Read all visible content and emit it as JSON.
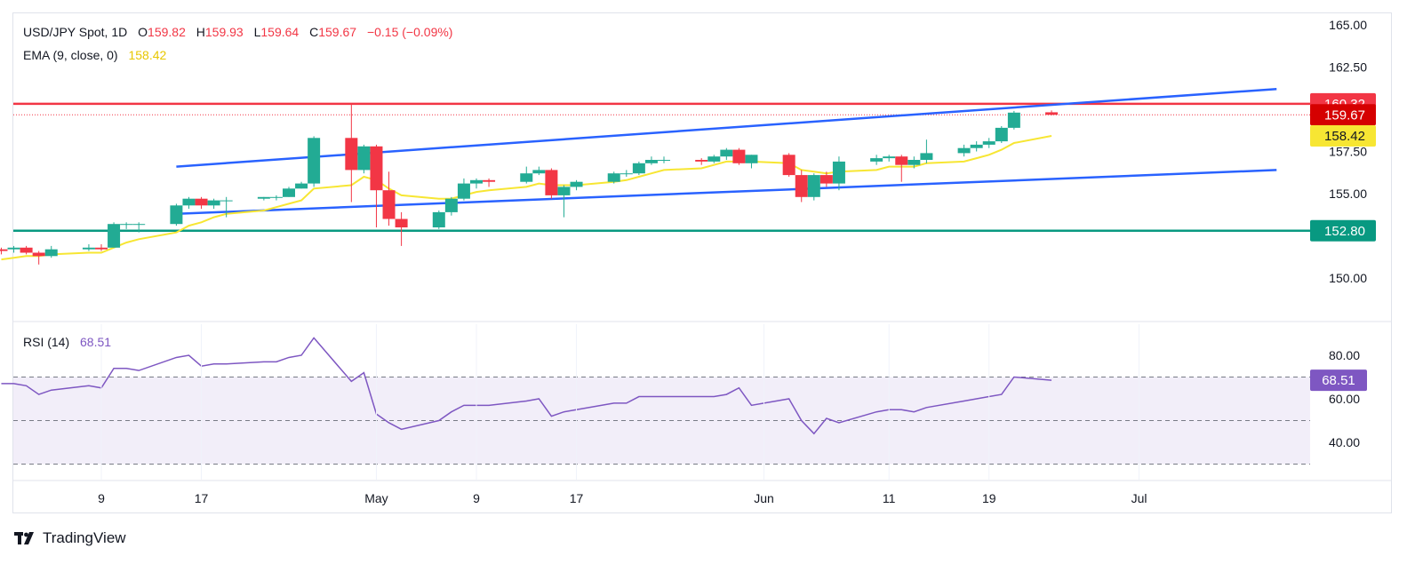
{
  "header": {
    "symbol": "USD/JPY Spot, 1D",
    "open_label": "O",
    "open": "159.82",
    "high_label": "H",
    "high": "159.93",
    "low_label": "L",
    "low": "159.64",
    "close_label": "C",
    "close": "159.67",
    "change": "−0.15 (−0.09%)"
  },
  "ema_legend": {
    "label": "EMA (9, close, 0)",
    "value": "158.42"
  },
  "rsi_legend": {
    "label": "RSI (14)",
    "value": "68.51"
  },
  "brand": {
    "name": "TradingView"
  },
  "colors": {
    "up": "#22ab94",
    "down": "#f23645",
    "ema": "#f7e633",
    "rsi": "#7e57c2",
    "channel": "#2962ff",
    "resistance": "#f23645",
    "support": "#089981"
  },
  "chart_data": [
    {
      "type": "candlestick",
      "title": "USD/JPY Spot, 1D",
      "ylim": [
        148.5,
        165.5
      ],
      "y_ticks": [
        "165.00",
        "162.50",
        "160.32",
        "159.67",
        "158.42",
        "157.50",
        "155.00",
        "152.80",
        "150.00"
      ],
      "x_tick_labels": [
        "9",
        "17",
        "May",
        "9",
        "17",
        "Jun",
        "11",
        "19",
        "Jul"
      ],
      "horizontal_lines": [
        {
          "name": "resistance",
          "value": 160.32,
          "label": "160.32"
        },
        {
          "name": "support",
          "value": 152.8,
          "label": "152.80"
        },
        {
          "name": "last-price",
          "value": 159.67,
          "label": "159.67",
          "style": "dotted"
        }
      ],
      "trend_channel": {
        "upper": {
          "from": [
            "Apr 15",
            156.6
          ],
          "to": [
            "Jul 12",
            161.2
          ]
        },
        "lower": {
          "from": [
            "Apr 15",
            153.8
          ],
          "to": [
            "Jul 12",
            156.4
          ]
        }
      },
      "candles": [
        {
          "d": "Apr 1",
          "o": 151.7,
          "h": 151.8,
          "l": 151.4,
          "c": 151.6
        },
        {
          "d": "Apr 2",
          "o": 151.7,
          "h": 151.9,
          "l": 151.5,
          "c": 151.8
        },
        {
          "d": "Apr 3",
          "o": 151.8,
          "h": 151.9,
          "l": 151.4,
          "c": 151.5
        },
        {
          "d": "Apr 4",
          "o": 151.5,
          "h": 151.6,
          "l": 150.8,
          "c": 151.3
        },
        {
          "d": "Apr 5",
          "o": 151.3,
          "h": 151.9,
          "l": 151.2,
          "c": 151.7
        },
        {
          "d": "Apr 8",
          "o": 151.7,
          "h": 152.0,
          "l": 151.6,
          "c": 151.8
        },
        {
          "d": "Apr 9",
          "o": 151.8,
          "h": 152.0,
          "l": 151.6,
          "c": 151.7
        },
        {
          "d": "Apr 10",
          "o": 151.8,
          "h": 153.3,
          "l": 151.8,
          "c": 153.2
        },
        {
          "d": "Apr 11",
          "o": 153.2,
          "h": 153.3,
          "l": 152.9,
          "c": 153.2
        },
        {
          "d": "Apr 12",
          "o": 153.2,
          "h": 153.3,
          "l": 152.7,
          "c": 153.2
        },
        {
          "d": "Apr 15",
          "o": 153.2,
          "h": 154.4,
          "l": 153.1,
          "c": 154.3
        },
        {
          "d": "Apr 16",
          "o": 154.3,
          "h": 154.8,
          "l": 154.1,
          "c": 154.7
        },
        {
          "d": "Apr 17",
          "o": 154.7,
          "h": 154.8,
          "l": 154.1,
          "c": 154.3
        },
        {
          "d": "Apr 18",
          "o": 154.3,
          "h": 154.7,
          "l": 154.1,
          "c": 154.6
        },
        {
          "d": "Apr 19",
          "o": 154.6,
          "h": 154.8,
          "l": 153.6,
          "c": 154.6
        },
        {
          "d": "Apr 22",
          "o": 154.7,
          "h": 154.8,
          "l": 154.6,
          "c": 154.8
        },
        {
          "d": "Apr 23",
          "o": 154.8,
          "h": 154.9,
          "l": 154.6,
          "c": 154.8
        },
        {
          "d": "Apr 24",
          "o": 154.8,
          "h": 155.4,
          "l": 154.8,
          "c": 155.3
        },
        {
          "d": "Apr 25",
          "o": 155.3,
          "h": 155.7,
          "l": 155.3,
          "c": 155.6
        },
        {
          "d": "Apr 26",
          "o": 155.6,
          "h": 158.4,
          "l": 155.4,
          "c": 158.3
        },
        {
          "d": "Apr 29",
          "o": 158.3,
          "h": 160.32,
          "l": 154.5,
          "c": 156.4
        },
        {
          "d": "Apr 30",
          "o": 156.4,
          "h": 157.9,
          "l": 156.2,
          "c": 157.8
        },
        {
          "d": "May 1",
          "o": 157.8,
          "h": 157.9,
          "l": 153.0,
          "c": 155.2
        },
        {
          "d": "May 2",
          "o": 155.2,
          "h": 156.3,
          "l": 153.1,
          "c": 153.5
        },
        {
          "d": "May 3",
          "o": 153.5,
          "h": 153.9,
          "l": 151.9,
          "c": 153.0
        },
        {
          "d": "May 6",
          "o": 153.0,
          "h": 154.0,
          "l": 152.9,
          "c": 153.9
        },
        {
          "d": "May 7",
          "o": 153.9,
          "h": 154.8,
          "l": 153.7,
          "c": 154.7
        },
        {
          "d": "May 8",
          "o": 154.7,
          "h": 155.9,
          "l": 154.6,
          "c": 155.6
        },
        {
          "d": "May 9",
          "o": 155.6,
          "h": 155.9,
          "l": 155.3,
          "c": 155.8
        },
        {
          "d": "May 10",
          "o": 155.8,
          "h": 155.9,
          "l": 155.4,
          "c": 155.7
        },
        {
          "d": "May 13",
          "o": 155.7,
          "h": 156.6,
          "l": 155.6,
          "c": 156.2
        },
        {
          "d": "May 14",
          "o": 156.2,
          "h": 156.6,
          "l": 156.1,
          "c": 156.4
        },
        {
          "d": "May 15",
          "o": 156.4,
          "h": 156.5,
          "l": 154.7,
          "c": 154.9
        },
        {
          "d": "May 16",
          "o": 154.9,
          "h": 155.5,
          "l": 153.6,
          "c": 155.4
        },
        {
          "d": "May 17",
          "o": 155.4,
          "h": 155.8,
          "l": 155.2,
          "c": 155.7
        },
        {
          "d": "May 20",
          "o": 155.7,
          "h": 156.3,
          "l": 155.6,
          "c": 156.2
        },
        {
          "d": "May 21",
          "o": 156.2,
          "h": 156.4,
          "l": 156.0,
          "c": 156.2
        },
        {
          "d": "May 22",
          "o": 156.2,
          "h": 156.9,
          "l": 156.1,
          "c": 156.8
        },
        {
          "d": "May 23",
          "o": 156.8,
          "h": 157.2,
          "l": 156.7,
          "c": 157.0
        },
        {
          "d": "May 24",
          "o": 157.0,
          "h": 157.2,
          "l": 156.8,
          "c": 157.0
        },
        {
          "d": "May 27",
          "o": 157.0,
          "h": 157.1,
          "l": 156.7,
          "c": 156.9
        },
        {
          "d": "May 28",
          "o": 156.9,
          "h": 157.3,
          "l": 156.8,
          "c": 157.2
        },
        {
          "d": "May 29",
          "o": 157.2,
          "h": 157.7,
          "l": 157.0,
          "c": 157.6
        },
        {
          "d": "May 30",
          "o": 157.6,
          "h": 157.7,
          "l": 156.7,
          "c": 156.8
        },
        {
          "d": "May 31",
          "o": 156.8,
          "h": 157.3,
          "l": 156.5,
          "c": 157.3
        },
        {
          "d": "Jun 3",
          "o": 157.3,
          "h": 157.4,
          "l": 156.0,
          "c": 156.1
        },
        {
          "d": "Jun 4",
          "o": 156.1,
          "h": 156.4,
          "l": 154.5,
          "c": 154.8
        },
        {
          "d": "Jun 5",
          "o": 154.8,
          "h": 156.2,
          "l": 154.6,
          "c": 156.1
        },
        {
          "d": "Jun 6",
          "o": 156.1,
          "h": 156.3,
          "l": 155.4,
          "c": 155.6
        },
        {
          "d": "Jun 7",
          "o": 155.6,
          "h": 157.2,
          "l": 155.2,
          "c": 156.9
        },
        {
          "d": "Jun 10",
          "o": 156.9,
          "h": 157.3,
          "l": 156.7,
          "c": 157.1
        },
        {
          "d": "Jun 11",
          "o": 157.1,
          "h": 157.3,
          "l": 156.9,
          "c": 157.2
        },
        {
          "d": "Jun 12",
          "o": 157.2,
          "h": 157.3,
          "l": 155.7,
          "c": 156.7
        },
        {
          "d": "Jun 13",
          "o": 156.7,
          "h": 157.2,
          "l": 156.5,
          "c": 157.0
        },
        {
          "d": "Jun 14",
          "o": 157.0,
          "h": 158.2,
          "l": 156.8,
          "c": 157.4
        },
        {
          "d": "Jun 17",
          "o": 157.4,
          "h": 157.9,
          "l": 157.2,
          "c": 157.7
        },
        {
          "d": "Jun 18",
          "o": 157.7,
          "h": 158.1,
          "l": 157.5,
          "c": 157.9
        },
        {
          "d": "Jun 19",
          "o": 157.9,
          "h": 158.3,
          "l": 157.7,
          "c": 158.1
        },
        {
          "d": "Jun 20",
          "o": 158.1,
          "h": 159.0,
          "l": 158.0,
          "c": 158.9
        },
        {
          "d": "Jun 21",
          "o": 158.9,
          "h": 159.9,
          "l": 158.8,
          "c": 159.8
        },
        {
          "d": "Jun 24",
          "o": 159.82,
          "h": 159.93,
          "l": 159.64,
          "c": 159.67
        }
      ],
      "ema": {
        "name": "EMA (9, close, 0)",
        "values": [
          151.1,
          151.2,
          151.3,
          151.3,
          151.4,
          151.5,
          151.5,
          151.8,
          152.1,
          152.3,
          152.7,
          153.1,
          153.3,
          153.6,
          153.8,
          154.0,
          154.2,
          154.4,
          154.6,
          155.3,
          155.5,
          156.0,
          155.8,
          155.3,
          154.9,
          154.7,
          154.7,
          154.9,
          155.1,
          155.2,
          155.4,
          155.6,
          155.5,
          155.5,
          155.5,
          155.7,
          155.8,
          156.0,
          156.2,
          156.4,
          156.5,
          156.7,
          156.9,
          156.9,
          156.9,
          156.8,
          156.4,
          156.3,
          156.2,
          156.3,
          156.4,
          156.6,
          156.6,
          156.6,
          156.8,
          156.9,
          157.1,
          157.3,
          157.6,
          158.0,
          158.42
        ]
      }
    },
    {
      "type": "line",
      "title": "RSI (14)",
      "ylim": [
        25,
        95
      ],
      "y_ticks": [
        "80.00",
        "68.51",
        "60.00",
        "40.00"
      ],
      "reference_lines": [
        70,
        50,
        30
      ],
      "series": [
        {
          "name": "RSI (14)",
          "values": [
            67,
            67,
            66,
            62,
            64,
            66,
            65,
            74,
            74,
            73,
            79,
            80,
            75,
            76,
            76,
            77,
            77,
            79,
            80,
            88,
            68,
            72,
            53,
            49,
            46,
            50,
            54,
            57,
            57,
            57,
            59,
            60,
            52,
            54,
            55,
            58,
            58,
            61,
            61,
            61,
            61,
            61,
            62,
            65,
            57,
            60,
            50,
            44,
            51,
            49,
            54,
            55,
            55,
            54,
            56,
            59,
            60,
            61,
            62,
            70,
            68.51
          ]
        }
      ]
    }
  ]
}
